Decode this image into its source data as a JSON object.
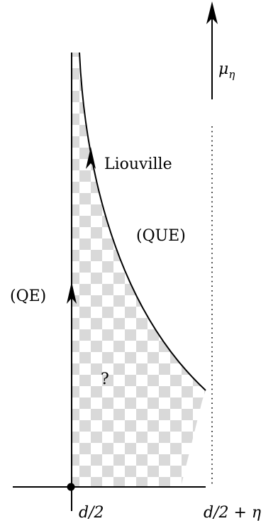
{
  "diagram": {
    "axis_vertical_label": "μ",
    "axis_vertical_label_sub": "η",
    "curve_label": "Liouville",
    "left_region_label": "(QE)",
    "right_region_label": "(QUE)",
    "unknown_region_label": "?",
    "x_tick_left": "d/2",
    "x_tick_right_prefix": "d/2 + ",
    "x_tick_right_sym": "η"
  },
  "colors": {
    "stroke": "#000000",
    "checker_light": "#ffffff",
    "checker_dark": "#d9d9d9"
  }
}
